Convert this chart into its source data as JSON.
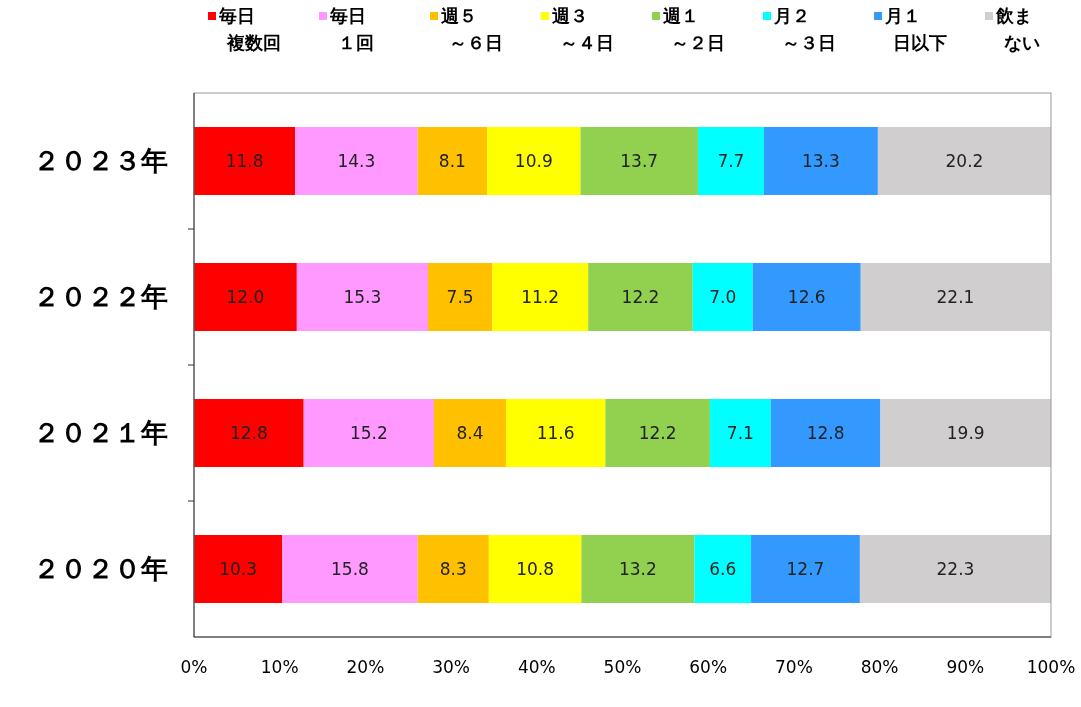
{
  "chart_data": {
    "type": "bar",
    "orientation": "horizontal",
    "stacked": true,
    "legend": "top",
    "grid": false,
    "categories": [
      "２０２３年",
      "２０２２年",
      "２０２１年",
      "２０２０年"
    ],
    "xlim": [
      0,
      100
    ],
    "xticks": [
      {
        "value": 0,
        "label": "0%"
      },
      {
        "value": 10,
        "label": "10%"
      },
      {
        "value": 20,
        "label": "20%"
      },
      {
        "value": 30,
        "label": "30%"
      },
      {
        "value": 40,
        "label": "40%"
      },
      {
        "value": 50,
        "label": "50%"
      },
      {
        "value": 60,
        "label": "60%"
      },
      {
        "value": 70,
        "label": "70%"
      },
      {
        "value": 80,
        "label": "80%"
      },
      {
        "value": 90,
        "label": "90%"
      },
      {
        "value": 100,
        "label": "100%"
      }
    ],
    "series": [
      {
        "name": "毎日複数回",
        "color": "#ff0000",
        "values": [
          11.8,
          12.0,
          12.8,
          10.3
        ],
        "value_labels": [
          "11.8",
          "12.0",
          "12.8",
          "10.3"
        ]
      },
      {
        "name": "毎日１回",
        "color": "#ff99ff",
        "values": [
          14.3,
          15.3,
          15.2,
          15.8
        ],
        "value_labels": [
          "14.3",
          "15.3",
          "15.2",
          "15.8"
        ]
      },
      {
        "name": "週５～６日",
        "color": "#ffc000",
        "values": [
          8.1,
          7.5,
          8.4,
          8.3
        ],
        "value_labels": [
          "8.1",
          "7.5",
          "8.4",
          "8.3"
        ]
      },
      {
        "name": "週３～４日",
        "color": "#ffff00",
        "values": [
          10.9,
          11.2,
          11.6,
          10.8
        ],
        "value_labels": [
          "10.9",
          "11.2",
          "11.6",
          "10.8"
        ]
      },
      {
        "name": "週１～２日",
        "color": "#92d050",
        "values": [
          13.7,
          12.2,
          12.2,
          13.2
        ],
        "value_labels": [
          "13.7",
          "12.2",
          "12.2",
          "13.2"
        ]
      },
      {
        "name": "月２～３日",
        "color": "#00ffff",
        "values": [
          7.7,
          7.0,
          7.1,
          6.6
        ],
        "value_labels": [
          "7.7",
          "7.0",
          "7.1",
          "6.6"
        ]
      },
      {
        "name": "月１日以下",
        "color": "#3399ff",
        "values": [
          13.3,
          12.6,
          12.8,
          12.7
        ],
        "value_labels": [
          "13.3",
          "12.6",
          "12.8",
          "12.7"
        ]
      },
      {
        "name": "飲まない",
        "color": "#d0cece",
        "values": [
          20.2,
          22.1,
          19.9,
          22.3
        ],
        "value_labels": [
          "20.2",
          "22.1",
          "19.9",
          "22.3"
        ]
      }
    ]
  }
}
